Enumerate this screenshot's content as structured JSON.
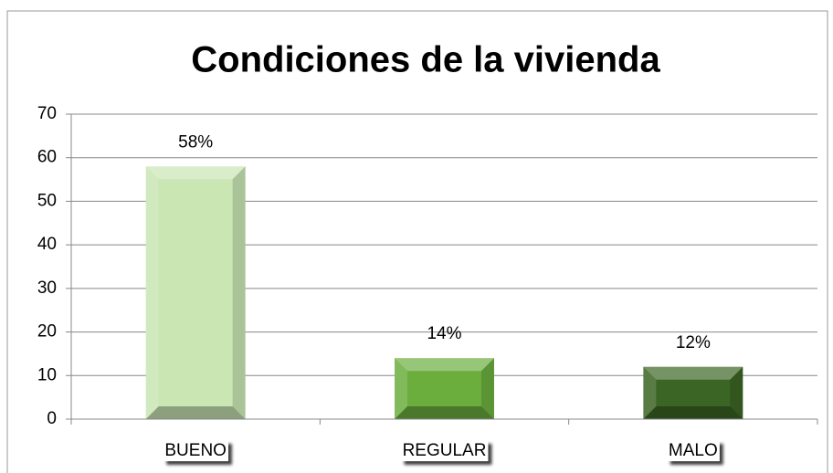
{
  "chart_data": {
    "type": "bar",
    "title": "Condiciones de la vivienda",
    "categories": [
      "BUENO",
      "REGULAR",
      "MALO"
    ],
    "values": [
      58,
      14,
      12
    ],
    "value_labels": [
      "58%",
      "14%",
      "12%"
    ],
    "colors": [
      "#c9e6b3",
      "#6cae3e",
      "#3b6524"
    ],
    "ylim": [
      0,
      70
    ],
    "yticks": [
      0,
      10,
      20,
      30,
      40,
      50,
      60,
      70
    ],
    "grid": true
  }
}
